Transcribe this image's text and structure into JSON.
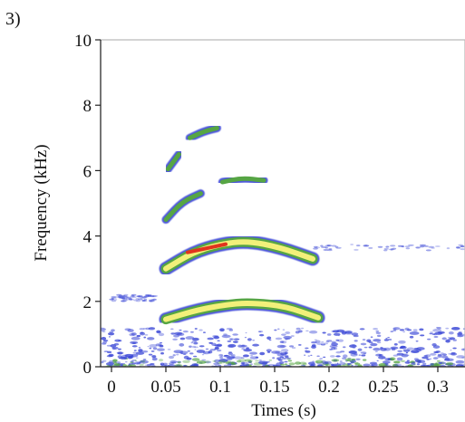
{
  "panel_label": "3)",
  "chart_data": {
    "type": "heatmap",
    "subtype": "spectrogram",
    "title": "",
    "xlabel": "Times (s)",
    "ylabel": "Frequency (kHz)",
    "xlim": [
      -0.01,
      0.325
    ],
    "ylim": [
      0,
      10
    ],
    "x_ticks": [
      0,
      0.05,
      0.1,
      0.15,
      0.2,
      0.25,
      0.3
    ],
    "x_tick_labels": [
      "0",
      "0.05",
      "0.1",
      "0.15",
      "0.2",
      "0.25",
      "0.3"
    ],
    "y_ticks": [
      0,
      2,
      4,
      6,
      8,
      10
    ],
    "y_tick_labels": [
      "0",
      "2",
      "4",
      "6",
      "8",
      "10"
    ],
    "grid": false,
    "colors": {
      "low": "#3a47d6",
      "mid": "#56a544",
      "high": "#f2f07a",
      "peak": "#e0341e"
    },
    "harmonics": [
      {
        "name": "h1",
        "intensity": "high",
        "points": [
          [
            0.05,
            1.45
          ],
          [
            0.08,
            1.75
          ],
          [
            0.11,
            1.92
          ],
          [
            0.13,
            1.95
          ],
          [
            0.16,
            1.85
          ],
          [
            0.19,
            1.5
          ]
        ]
      },
      {
        "name": "h2",
        "intensity": "high",
        "points": [
          [
            0.05,
            3.0
          ],
          [
            0.075,
            3.5
          ],
          [
            0.1,
            3.75
          ],
          [
            0.125,
            3.85
          ],
          [
            0.155,
            3.65
          ],
          [
            0.185,
            3.3
          ]
        ]
      },
      {
        "name": "h3",
        "intensity": "mid",
        "points": [
          [
            0.05,
            4.5
          ],
          [
            0.065,
            5.05
          ],
          [
            0.082,
            5.3
          ]
        ]
      },
      {
        "name": "h3b",
        "intensity": "mid",
        "points": [
          [
            0.102,
            5.65
          ],
          [
            0.12,
            5.78
          ],
          [
            0.14,
            5.7
          ]
        ]
      },
      {
        "name": "h4",
        "intensity": "mid",
        "points": [
          [
            0.052,
            6.05
          ],
          [
            0.062,
            6.5
          ]
        ]
      },
      {
        "name": "h4b",
        "intensity": "mid",
        "points": [
          [
            0.072,
            7.0
          ],
          [
            0.085,
            7.2
          ],
          [
            0.097,
            7.3
          ]
        ]
      }
    ],
    "peak_region": {
      "x": [
        0.07,
        0.105
      ],
      "y": [
        3.5,
        3.75
      ]
    },
    "background_noise_band_khz": [
      0,
      1.2
    ]
  }
}
